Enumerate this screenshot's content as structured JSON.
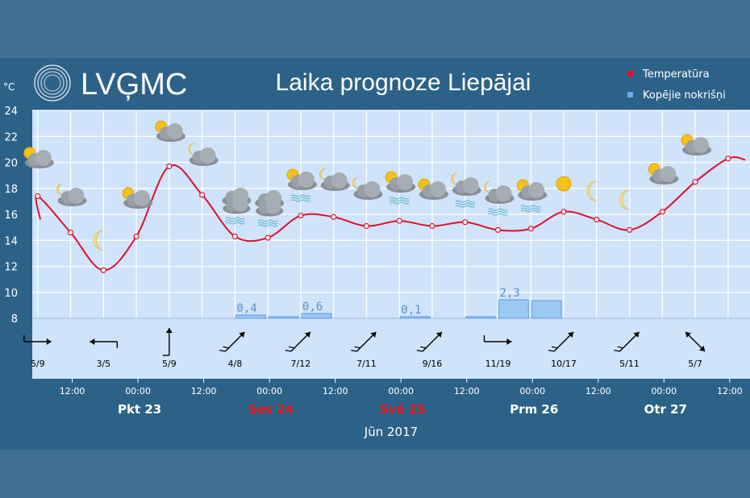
{
  "header": {
    "logo_text": "LVĢMC",
    "title": "Laika prognoze Liepājai",
    "unit": "°C"
  },
  "legend": [
    {
      "label": "Temperatūra",
      "color": "#e0102a"
    },
    {
      "label": "Kopējie nokrišņi",
      "color": "#6fa8e8"
    }
  ],
  "month_label": "Jūn 2017",
  "colors": {
    "plot_bg": "#cfe3fb",
    "grid": "#ffffff",
    "panel": "#2d6288",
    "outer": "#3f6f94",
    "temp_line": "#e0102a",
    "precip_fill": "#9cc8f4",
    "precip_stroke": "#5d9ae0",
    "weekend_day": "#ee1111",
    "weekday": "#ffffff"
  },
  "time_ticks": [
    "12:00",
    "00:00",
    "12:00",
    "00:00",
    "12:00",
    "00:00",
    "12:00",
    "00:00",
    "12:00",
    "00:00",
    "12:00"
  ],
  "days": [
    {
      "label": "Pkt 23",
      "weekend": false
    },
    {
      "label": "Ses 24",
      "weekend": true
    },
    {
      "label": "Svē 25",
      "weekend": true
    },
    {
      "label": "Prm 26",
      "weekend": false
    },
    {
      "label": "Otr 27",
      "weekend": false
    }
  ],
  "wind": [
    {
      "text": "5/9",
      "direction": "west",
      "type": "hook"
    },
    {
      "text": "3/5",
      "direction": "east",
      "type": "hook"
    },
    {
      "text": "5/9",
      "direction": "north",
      "type": "hook"
    },
    {
      "text": "4/8",
      "direction": "southwest",
      "type": "feather"
    },
    {
      "text": "7/12",
      "direction": "southwest",
      "type": "feather"
    },
    {
      "text": "7/11",
      "direction": "southwest",
      "type": "feather"
    },
    {
      "text": "9/16",
      "direction": "southwest",
      "type": "feather"
    },
    {
      "text": "11/19",
      "direction": "west",
      "type": "hook"
    },
    {
      "text": "10/17",
      "direction": "southwest",
      "type": "feather"
    },
    {
      "text": "5/11",
      "direction": "southwest",
      "type": "feather"
    },
    {
      "text": "5/7",
      "direction": "northwest",
      "type": "double"
    }
  ],
  "icons": [
    {
      "name": "sun-cloud-icon",
      "kind": "suncloud"
    },
    {
      "name": "moon-cloud-icon",
      "kind": "mooncloud"
    },
    {
      "name": "moon-icon",
      "kind": "moon"
    },
    {
      "name": "sun-cloud-icon",
      "kind": "suncloud"
    },
    {
      "name": "sun-cloud-icon",
      "kind": "suncloud"
    },
    {
      "name": "moon-cloud-icon",
      "kind": "mooncloud"
    },
    {
      "name": "cloud-rain-icon",
      "kind": "rain"
    },
    {
      "name": "cloud-rain-icon",
      "kind": "rain"
    },
    {
      "name": "sun-cloud-rain-icon",
      "kind": "suncloudrain"
    },
    {
      "name": "moon-cloud-icon",
      "kind": "mooncloud"
    },
    {
      "name": "moon-cloud-icon",
      "kind": "mooncloud"
    },
    {
      "name": "sun-cloud-rain-icon",
      "kind": "suncloudrain"
    },
    {
      "name": "sun-cloud-icon",
      "kind": "suncloud"
    },
    {
      "name": "moon-cloud-rain-icon",
      "kind": "mooncloudrain"
    },
    {
      "name": "moon-cloud-rain-icon",
      "kind": "mooncloudrain"
    },
    {
      "name": "sun-cloud-rain-icon",
      "kind": "suncloudrain"
    },
    {
      "name": "sun-icon",
      "kind": "sun"
    },
    {
      "name": "moon-icon",
      "kind": "moon"
    },
    {
      "name": "moon-icon",
      "kind": "moon"
    },
    {
      "name": "sun-cloud-icon",
      "kind": "suncloud"
    },
    {
      "name": "sun-cloud-icon",
      "kind": "suncloud"
    }
  ],
  "chart_data": {
    "type": "line",
    "title": "Laika prognoze Liepājai",
    "ylabel": "°C",
    "ylim": [
      8,
      24
    ],
    "yticks": [
      8,
      10,
      12,
      14,
      16,
      18,
      20,
      22,
      24
    ],
    "x_unit": "hours since 2017-06-23 00:00",
    "xlim": [
      5,
      136
    ],
    "grid": true,
    "legend_position": "top-right",
    "series": [
      {
        "name": "Temperatūra",
        "type": "line",
        "x": [
          6,
          12,
          18,
          24,
          30,
          36,
          42,
          48,
          54,
          60,
          66,
          72,
          78,
          84,
          90,
          96,
          102,
          108,
          114,
          120,
          126,
          132
        ],
        "y": [
          17.4,
          14.6,
          11.7,
          14.3,
          19.7,
          17.5,
          14.3,
          14.2,
          15.9,
          15.8,
          15.1,
          15.5,
          15.1,
          15.4,
          14.8,
          14.9,
          16.2,
          15.6,
          14.8,
          16.2,
          18.5,
          20.3
        ]
      },
      {
        "name": "Kopējie nokrišņi",
        "type": "bar",
        "x": [
          42,
          48,
          54,
          72,
          84,
          90,
          96
        ],
        "y": [
          0.4,
          0.1,
          0.6,
          0.1,
          0.1,
          2.3,
          2.2
        ],
        "labels": [
          "0,4",
          "",
          "0,6",
          "0,1",
          "",
          "2,3",
          ""
        ]
      }
    ]
  }
}
